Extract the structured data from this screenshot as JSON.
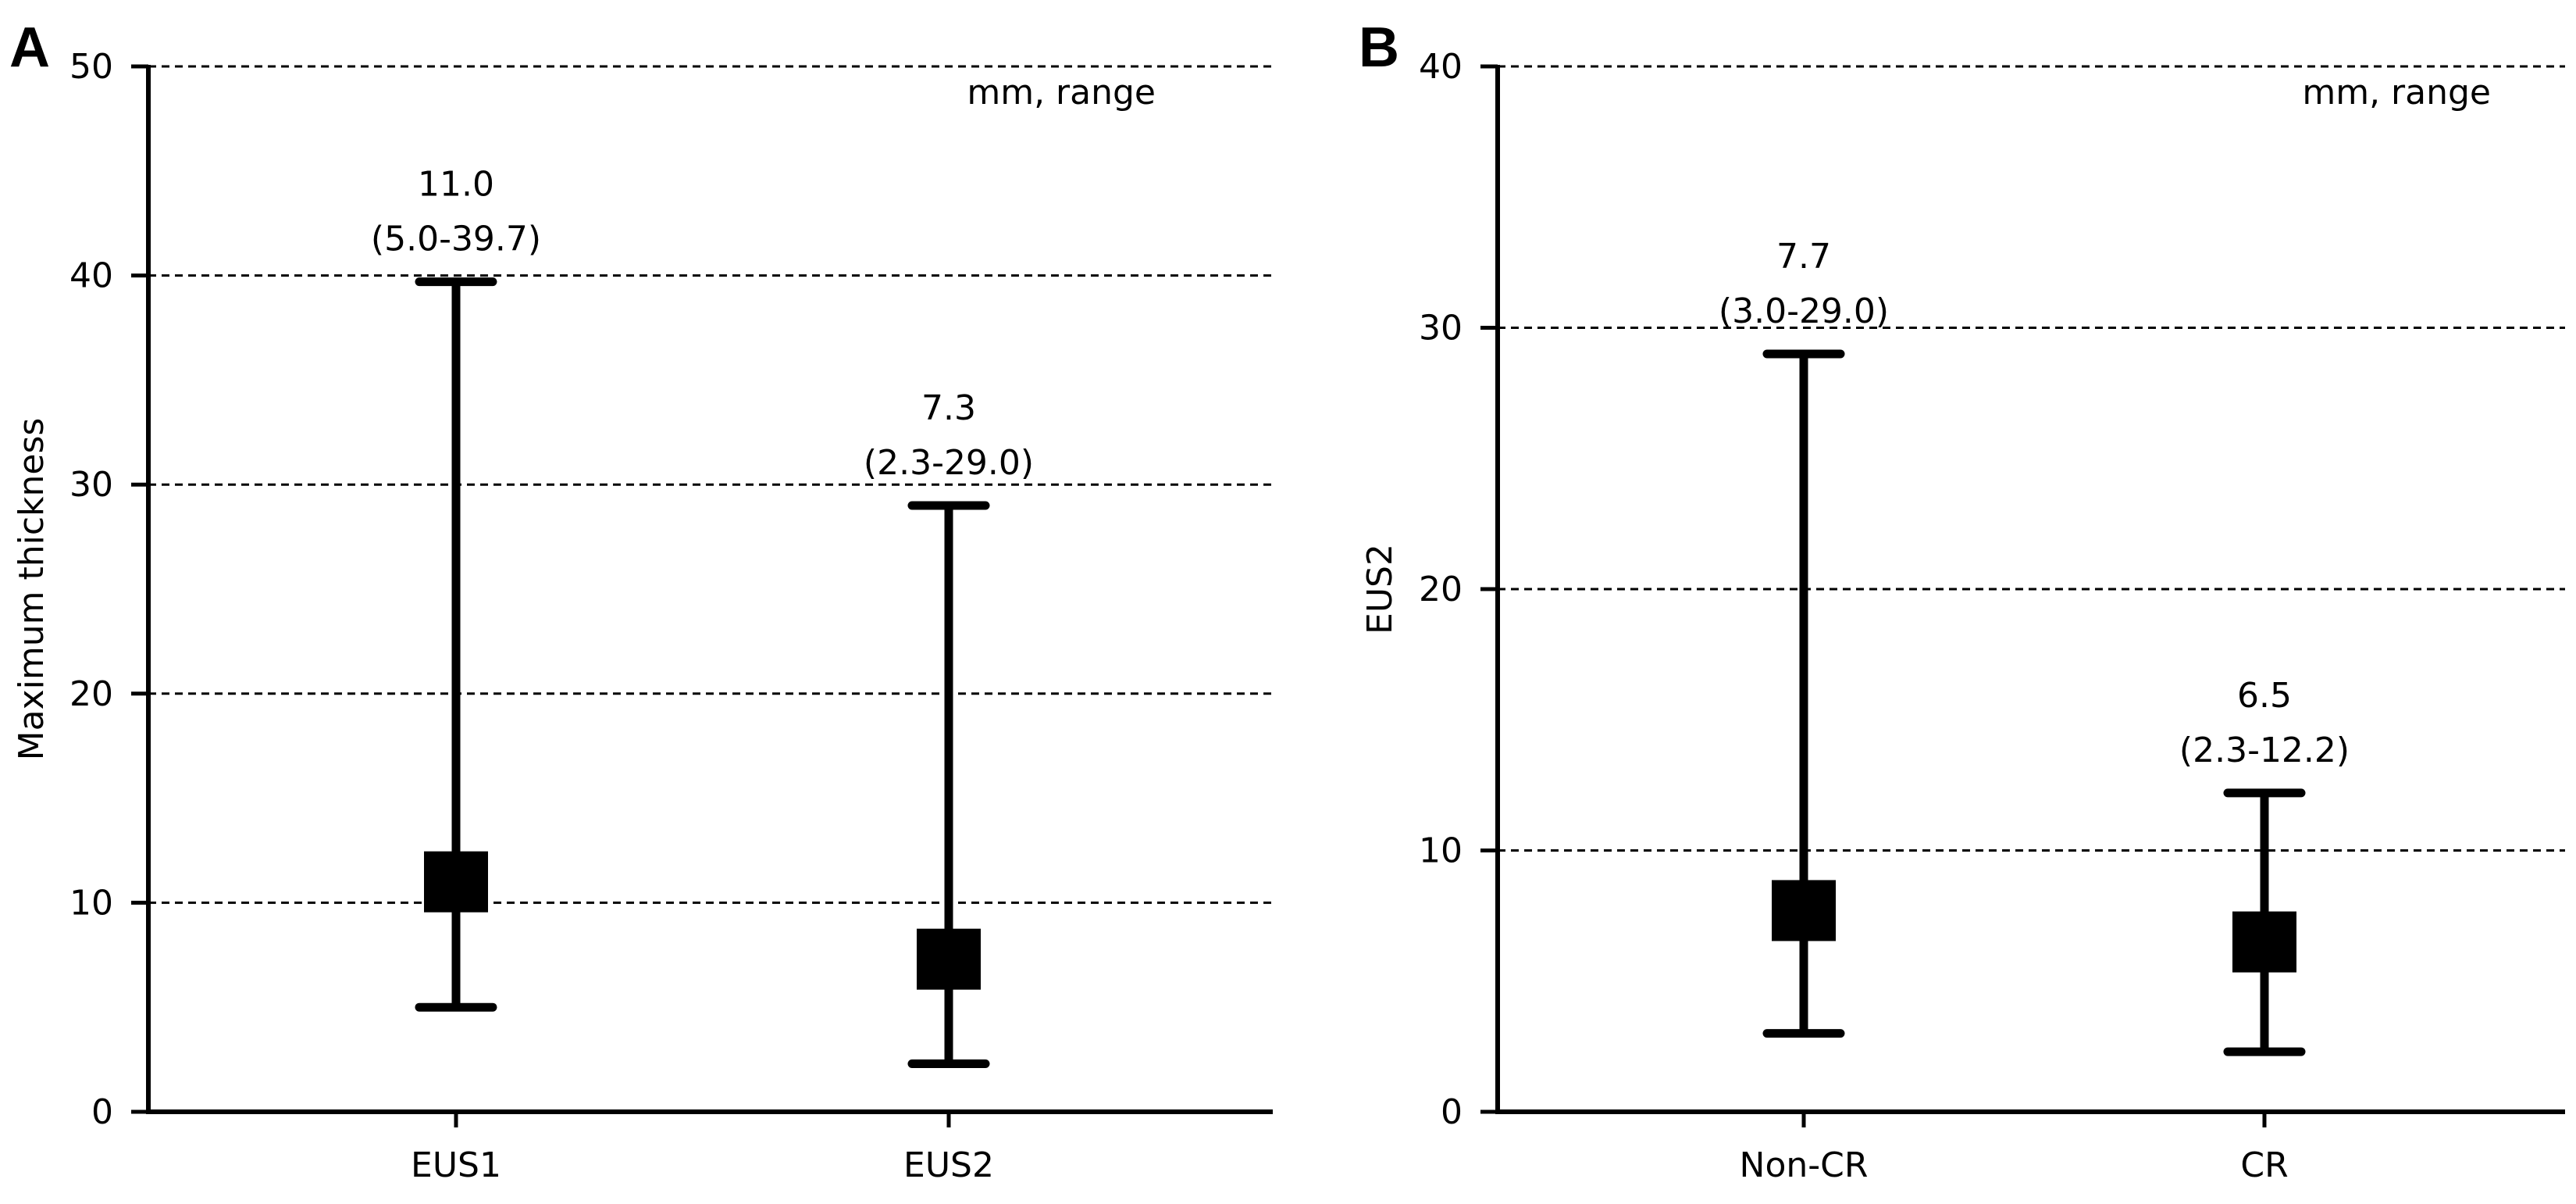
{
  "chart_data": [
    {
      "type": "range",
      "panel_label": "A",
      "units_note": "mm, range",
      "xlabel": "",
      "ylabel": "Maximum thickness",
      "ylim": [
        0,
        50
      ],
      "yticks": [
        0,
        10,
        20,
        30,
        40,
        50
      ],
      "ytick_labels": [
        "0",
        "10",
        "20",
        "30",
        "40",
        "50"
      ],
      "grid": "horizontal dashed",
      "categories": [
        "EUS1",
        "EUS2"
      ],
      "points": [
        {
          "category": "EUS1",
          "median": 11.0,
          "min": 5.0,
          "max": 39.7,
          "median_label": "11.0",
          "range_label": "(5.0-39.7)"
        },
        {
          "category": "EUS2",
          "median": 7.3,
          "min": 2.3,
          "max": 29.0,
          "median_label": "7.3",
          "range_label": "(2.3-29.0)"
        }
      ]
    },
    {
      "type": "range",
      "panel_label": "B",
      "units_note": "mm, range",
      "xlabel": "",
      "ylabel": "EUS2",
      "ylim": [
        0,
        40
      ],
      "yticks": [
        0,
        10,
        20,
        30,
        40
      ],
      "ytick_labels": [
        "0",
        "10",
        "20",
        "30",
        "40"
      ],
      "grid": "horizontal dashed",
      "categories": [
        "Non-CR",
        "CR"
      ],
      "points": [
        {
          "category": "Non-CR",
          "median": 7.7,
          "min": 3.0,
          "max": 29.0,
          "median_label": "7.7",
          "range_label": "(3.0-29.0)"
        },
        {
          "category": "CR",
          "median": 6.5,
          "min": 2.3,
          "max": 12.2,
          "median_label": "6.5",
          "range_label": "(2.3-12.2)"
        }
      ]
    }
  ]
}
